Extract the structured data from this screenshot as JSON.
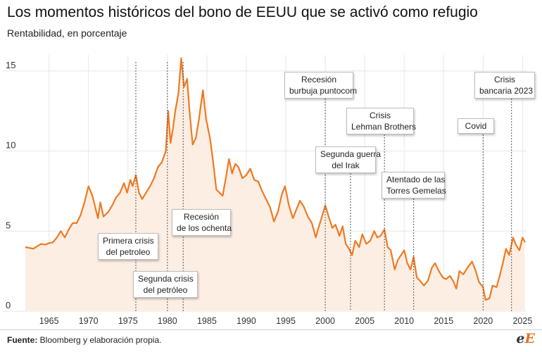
{
  "title": "Los momentos históricos del bono de EEUU que se activó como refugio",
  "subtitle": "Rentabilidad, en porcentaje",
  "source_label": "Fuente:",
  "source_text": " Bloomberg y elaboración propia.",
  "logo": {
    "first": "e",
    "second": "E"
  },
  "colors": {
    "line": "#ee7a22",
    "area": "#fdeee3",
    "grid": "#e6e6e6",
    "vline": "#555555"
  },
  "chart_data": {
    "type": "area",
    "title": "Los momentos históricos del bono de EEUU que se activó como refugio",
    "ylabel": "Rentabilidad, en porcentaje",
    "xlim": [
      1962,
      2025.5
    ],
    "ylim": [
      0,
      16
    ],
    "yticks": [
      0,
      5,
      10,
      15
    ],
    "xticks": [
      1965,
      1970,
      1975,
      1980,
      1985,
      1990,
      1995,
      2000,
      2005,
      2010,
      2015,
      2020,
      2025
    ],
    "grid": "vertical and horizontal",
    "series": [
      {
        "points": [
          [
            1962.0,
            4.0
          ],
          [
            1962.5,
            3.95
          ],
          [
            1963.0,
            3.9
          ],
          [
            1963.5,
            4.05
          ],
          [
            1964.0,
            4.2
          ],
          [
            1964.5,
            4.15
          ],
          [
            1965.0,
            4.25
          ],
          [
            1965.5,
            4.3
          ],
          [
            1966.0,
            4.6
          ],
          [
            1966.5,
            5.0
          ],
          [
            1967.0,
            4.6
          ],
          [
            1967.5,
            5.1
          ],
          [
            1968.0,
            5.5
          ],
          [
            1968.5,
            5.5
          ],
          [
            1969.0,
            6.0
          ],
          [
            1969.5,
            6.8
          ],
          [
            1970.0,
            7.8
          ],
          [
            1970.5,
            7.2
          ],
          [
            1970.9,
            6.4
          ],
          [
            1971.2,
            5.8
          ],
          [
            1971.5,
            6.8
          ],
          [
            1971.9,
            5.9
          ],
          [
            1972.5,
            6.2
          ],
          [
            1973.0,
            6.6
          ],
          [
            1973.5,
            7.1
          ],
          [
            1974.0,
            7.4
          ],
          [
            1974.5,
            8.0
          ],
          [
            1974.9,
            7.4
          ],
          [
            1975.3,
            8.2
          ],
          [
            1975.6,
            7.8
          ],
          [
            1976.0,
            8.5
          ],
          [
            1976.4,
            7.4
          ],
          [
            1976.8,
            7.0
          ],
          [
            1977.3,
            7.4
          ],
          [
            1977.8,
            7.8
          ],
          [
            1978.3,
            8.3
          ],
          [
            1978.8,
            9.0
          ],
          [
            1979.3,
            9.3
          ],
          [
            1979.8,
            10.0
          ],
          [
            1980.1,
            12.5
          ],
          [
            1980.4,
            10.5
          ],
          [
            1980.7,
            11.4
          ],
          [
            1981.0,
            12.5
          ],
          [
            1981.4,
            13.6
          ],
          [
            1981.75,
            15.8
          ],
          [
            1982.1,
            14.0
          ],
          [
            1982.5,
            14.5
          ],
          [
            1982.8,
            12.5
          ],
          [
            1983.2,
            10.4
          ],
          [
            1983.6,
            10.8
          ],
          [
            1984.0,
            12.0
          ],
          [
            1984.5,
            13.8
          ],
          [
            1984.9,
            12.0
          ],
          [
            1985.4,
            10.8
          ],
          [
            1985.8,
            9.3
          ],
          [
            1986.2,
            7.6
          ],
          [
            1986.6,
            7.4
          ],
          [
            1987.0,
            7.2
          ],
          [
            1987.4,
            8.3
          ],
          [
            1987.8,
            9.5
          ],
          [
            1988.2,
            8.6
          ],
          [
            1988.6,
            9.2
          ],
          [
            1989.0,
            9.0
          ],
          [
            1989.5,
            8.3
          ],
          [
            1990.0,
            8.5
          ],
          [
            1990.5,
            8.9
          ],
          [
            1991.0,
            8.2
          ],
          [
            1991.5,
            8.1
          ],
          [
            1992.0,
            7.5
          ],
          [
            1992.5,
            7.0
          ],
          [
            1993.0,
            6.5
          ],
          [
            1993.5,
            5.6
          ],
          [
            1994.0,
            6.2
          ],
          [
            1994.5,
            7.3
          ],
          [
            1994.9,
            7.8
          ],
          [
            1995.4,
            6.6
          ],
          [
            1995.9,
            5.8
          ],
          [
            1996.3,
            6.3
          ],
          [
            1996.8,
            6.9
          ],
          [
            1997.3,
            6.5
          ],
          [
            1997.8,
            5.9
          ],
          [
            1998.3,
            5.5
          ],
          [
            1998.8,
            4.6
          ],
          [
            1999.2,
            5.3
          ],
          [
            1999.7,
            6.1
          ],
          [
            2000.0,
            6.6
          ],
          [
            2000.5,
            5.8
          ],
          [
            2000.9,
            5.2
          ],
          [
            2001.3,
            5.4
          ],
          [
            2001.8,
            4.7
          ],
          [
            2002.2,
            5.3
          ],
          [
            2002.6,
            4.2
          ],
          [
            2003.0,
            3.9
          ],
          [
            2003.4,
            3.5
          ],
          [
            2003.8,
            4.4
          ],
          [
            2004.3,
            4.0
          ],
          [
            2004.7,
            4.8
          ],
          [
            2005.2,
            4.2
          ],
          [
            2005.7,
            4.4
          ],
          [
            2006.2,
            5.0
          ],
          [
            2006.6,
            4.6
          ],
          [
            2007.0,
            4.7
          ],
          [
            2007.5,
            5.1
          ],
          [
            2007.9,
            4.0
          ],
          [
            2008.3,
            3.8
          ],
          [
            2008.8,
            2.6
          ],
          [
            2009.2,
            3.2
          ],
          [
            2009.6,
            3.5
          ],
          [
            2010.0,
            3.8
          ],
          [
            2010.4,
            3.0
          ],
          [
            2010.8,
            2.6
          ],
          [
            2011.2,
            3.4
          ],
          [
            2011.6,
            2.1
          ],
          [
            2012.0,
            1.9
          ],
          [
            2012.5,
            1.6
          ],
          [
            2013.0,
            1.9
          ],
          [
            2013.5,
            2.7
          ],
          [
            2013.9,
            3.0
          ],
          [
            2014.4,
            2.5
          ],
          [
            2014.9,
            2.1
          ],
          [
            2015.3,
            2.0
          ],
          [
            2015.8,
            2.2
          ],
          [
            2016.3,
            1.8
          ],
          [
            2016.6,
            1.4
          ],
          [
            2017.0,
            2.5
          ],
          [
            2017.5,
            2.3
          ],
          [
            2018.0,
            2.7
          ],
          [
            2018.6,
            3.1
          ],
          [
            2019.0,
            2.6
          ],
          [
            2019.5,
            1.8
          ],
          [
            2020.0,
            1.5
          ],
          [
            2020.3,
            0.7
          ],
          [
            2020.8,
            0.8
          ],
          [
            2021.2,
            1.6
          ],
          [
            2021.7,
            1.5
          ],
          [
            2022.1,
            2.2
          ],
          [
            2022.5,
            3.0
          ],
          [
            2022.9,
            3.9
          ],
          [
            2023.3,
            3.5
          ],
          [
            2023.8,
            4.6
          ],
          [
            2024.2,
            4.1
          ],
          [
            2024.6,
            3.8
          ],
          [
            2025.0,
            4.6
          ],
          [
            2025.3,
            4.3
          ]
        ]
      }
    ],
    "annotations": [
      {
        "id": "primera-crisis",
        "year": 1976,
        "lines": [
          "Primera crisis",
          "del petroleo"
        ]
      },
      {
        "id": "segunda-crisis",
        "year": 1980,
        "lines": [
          "Segunda crisis",
          "del petróleo"
        ]
      },
      {
        "id": "recesion-ochenta",
        "year": 1982,
        "lines": [
          "Recesión",
          "de los ochenta"
        ]
      },
      {
        "id": "recesion-puntocom",
        "year": 2000,
        "lines": [
          "Recesión",
          "burbuja puntocom"
        ]
      },
      {
        "id": "guerra-irak",
        "year": 2003.2,
        "lines": [
          "Segunda guerra",
          "del Irak"
        ]
      },
      {
        "id": "lehman",
        "year": 2007.5,
        "lines": [
          "Crisis",
          "Lehman Brothers"
        ]
      },
      {
        "id": "torres-gemelas",
        "year": 2011.2,
        "lines": [
          "Atentado de las",
          "Torres Gemelas"
        ]
      },
      {
        "id": "covid",
        "year": 2020,
        "lines": [
          "Covid"
        ]
      },
      {
        "id": "bancaria-2023",
        "year": 2023.6,
        "lines": [
          "Crisis",
          "bancaria 2023"
        ]
      }
    ]
  }
}
